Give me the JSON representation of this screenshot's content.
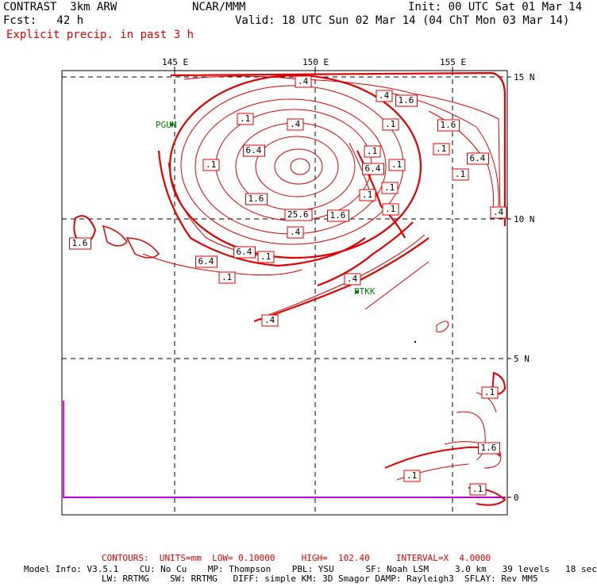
{
  "header": {
    "title": "CONTRAST  3km ARW",
    "center": "NCAR/MMM",
    "init": "Init: 00 UTC Sat 01 Mar 14",
    "fcst": "Fcst:   42 h",
    "valid": "Valid: 18 UTC Sun 02 Mar 14 (04 ChT Mon 03 Mar 14)",
    "field": "Explicit precip. in past 3 h"
  },
  "axes": {
    "lon_labels": [
      "145 E",
      "150 E",
      "155 E"
    ],
    "lat_labels": [
      "15 N",
      "10 N",
      "5 N",
      "0"
    ]
  },
  "stations": [
    {
      "name": "PGUM"
    },
    {
      "name": "PTKK"
    }
  ],
  "contour_labels": [
    {
      "text": ".4"
    },
    {
      "text": ".4"
    },
    {
      "text": "1.6"
    },
    {
      "text": ".1"
    },
    {
      "text": ".1"
    },
    {
      "text": ".4"
    },
    {
      "text": "1.6"
    },
    {
      "text": "6.4"
    },
    {
      "text": ".1"
    },
    {
      "text": ".1"
    },
    {
      "text": "6.4"
    },
    {
      "text": ".1"
    },
    {
      "text": ".1"
    },
    {
      "text": "6.4"
    },
    {
      "text": ".1"
    },
    {
      "text": ".1"
    },
    {
      "text": ".1"
    },
    {
      "text": "1.6"
    },
    {
      "text": "25.6"
    },
    {
      "text": "1.6"
    },
    {
      "text": ".1"
    },
    {
      "text": ".4"
    },
    {
      "text": ".4"
    },
    {
      "text": "1.6"
    },
    {
      "text": "6.4"
    },
    {
      "text": ".1"
    },
    {
      "text": "6.4"
    },
    {
      "text": ".1"
    },
    {
      "text": ".4"
    },
    {
      "text": ".4"
    },
    {
      "text": ".1"
    },
    {
      "text": "1.6"
    },
    {
      "text": ".1"
    },
    {
      "text": ".1"
    }
  ],
  "footer": {
    "contours": "CONTOURS:  UNITS=mm  LOW= 0.10000     HIGH=  102.40     INTERVAL=X  4.0000",
    "line1": "Model Info: V3.5.1    CU: No Cu    MP: Thompson    PBL: YSU      SF: Noah LSM     3.0 km   39 levels   18 sec",
    "line2": "LW: RRTMG    SW: RRTMG   DIFF: simple KM: 3D Smagor DAMP: Rayleigh3  SFLAY: Rev MM5"
  },
  "colors": {
    "contour": "#e00000",
    "station": "#008000",
    "coast": "#ff00ff"
  }
}
